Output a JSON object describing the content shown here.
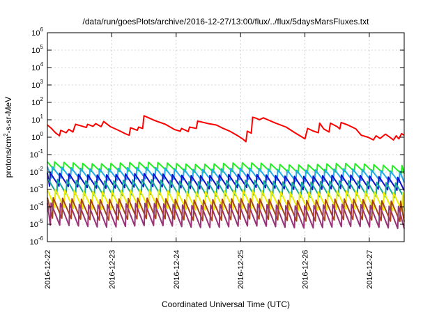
{
  "chart_data": {
    "type": "line",
    "title": "/data/run/goesPlots/archive/2016-12-27/13:00/flux/../flux/5daysMarsFluxes.txt",
    "xlabel": "Coordinated Universal Time (UTC)",
    "ylabel_base": "protons/cm",
    "ylabel_sup": "2",
    "ylabel_tail": "-s-sr-MeV",
    "y_scale": "log",
    "ylim": [
      1e-06,
      1000000.0
    ],
    "xlim": [
      "2016-12-22T00:00",
      "2016-12-27T13:00"
    ],
    "grid": true,
    "legend": "none",
    "x_ticks": [
      "2016-12-22",
      "2016-12-23",
      "2016-12-24",
      "2016-12-25",
      "2016-12-26",
      "2016-12-27"
    ],
    "y_ticks": [
      {
        "base": "10",
        "exp": "-6"
      },
      {
        "base": "10",
        "exp": "-5"
      },
      {
        "base": "10",
        "exp": "-4"
      },
      {
        "base": "10",
        "exp": "-3"
      },
      {
        "base": "10",
        "exp": "-2"
      },
      {
        "base": "10",
        "exp": "-1"
      },
      {
        "base": "10",
        "exp": "0"
      },
      {
        "base": "10",
        "exp": "1"
      },
      {
        "base": "10",
        "exp": "2"
      },
      {
        "base": "10",
        "exp": "3"
      },
      {
        "base": "10",
        "exp": "4"
      },
      {
        "base": "10",
        "exp": "5"
      },
      {
        "base": "10",
        "exp": "6"
      }
    ],
    "series": [
      {
        "color": "#ff0000",
        "kind": "points",
        "points": [
          [
            "2016-12-22T00:00",
            5
          ],
          [
            "2016-12-22T01:30",
            3.2
          ],
          [
            "2016-12-22T03:00",
            1.8
          ],
          [
            "2016-12-22T04:30",
            1.2
          ],
          [
            "2016-12-22T05:00",
            2.5
          ],
          [
            "2016-12-22T07:00",
            1.8
          ],
          [
            "2016-12-22T08:00",
            2.8
          ],
          [
            "2016-12-22T09:30",
            2.0
          ],
          [
            "2016-12-22T10:30",
            5.5
          ],
          [
            "2016-12-22T13:00",
            4.3
          ],
          [
            "2016-12-22T14:30",
            3.6
          ],
          [
            "2016-12-22T15:00",
            5.5
          ],
          [
            "2016-12-22T17:00",
            4.2
          ],
          [
            "2016-12-22T18:00",
            6.0
          ],
          [
            "2016-12-22T20:00",
            4.0
          ],
          [
            "2016-12-22T21:00",
            8.0
          ],
          [
            "2016-12-22T23:30",
            4.0
          ],
          [
            "2016-12-23T03:00",
            2.3
          ],
          [
            "2016-12-23T05:00",
            1.6
          ],
          [
            "2016-12-23T06:30",
            1.3
          ],
          [
            "2016-12-23T07:00",
            3.5
          ],
          [
            "2016-12-23T09:30",
            2.5
          ],
          [
            "2016-12-23T10:00",
            3.8
          ],
          [
            "2016-12-23T11:30",
            3.2
          ],
          [
            "2016-12-23T12:00",
            17
          ],
          [
            "2016-12-23T16:00",
            9
          ],
          [
            "2016-12-23T20:00",
            5.5
          ],
          [
            "2016-12-23T23:30",
            2.7
          ],
          [
            "2016-12-24T01:30",
            2.2
          ],
          [
            "2016-12-24T02:00",
            3.2
          ],
          [
            "2016-12-24T04:30",
            2.1
          ],
          [
            "2016-12-24T05:00",
            3.8
          ],
          [
            "2016-12-24T07:30",
            3.2
          ],
          [
            "2016-12-24T08:00",
            8.5
          ],
          [
            "2016-12-24T12:00",
            6.0
          ],
          [
            "2016-12-24T15:00",
            5.0
          ],
          [
            "2016-12-24T17:00",
            3.5
          ],
          [
            "2016-12-24T20:00",
            2.2
          ],
          [
            "2016-12-24T23:00",
            1.2
          ],
          [
            "2016-12-25T01:00",
            0.75
          ],
          [
            "2016-12-25T02:00",
            0.55
          ],
          [
            "2016-12-25T02:30",
            2.2
          ],
          [
            "2016-12-25T04:00",
            1.7
          ],
          [
            "2016-12-25T04:30",
            14
          ],
          [
            "2016-12-25T06:00",
            12
          ],
          [
            "2016-12-25T07:00",
            10
          ],
          [
            "2016-12-25T08:30",
            13
          ],
          [
            "2016-12-25T13:00",
            6.5
          ],
          [
            "2016-12-25T17:00",
            3.8
          ],
          [
            "2016-12-25T20:00",
            1.9
          ],
          [
            "2016-12-25T23:00",
            1.0
          ],
          [
            "2016-12-26T00:00",
            0.8
          ],
          [
            "2016-12-26T01:00",
            3.2
          ],
          [
            "2016-12-26T03:00",
            2.3
          ],
          [
            "2016-12-26T05:00",
            1.8
          ],
          [
            "2016-12-26T05:30",
            6.5
          ],
          [
            "2016-12-26T07:00",
            3.0
          ],
          [
            "2016-12-26T09:00",
            2.0
          ],
          [
            "2016-12-26T09:30",
            6.5
          ],
          [
            "2016-12-26T12:00",
            4.0
          ],
          [
            "2016-12-26T13:00",
            3.0
          ],
          [
            "2016-12-26T13:30",
            7.0
          ],
          [
            "2016-12-26T16:00",
            5.0
          ],
          [
            "2016-12-26T19:00",
            3.0
          ],
          [
            "2016-12-26T21:00",
            1.3
          ],
          [
            "2016-12-26T23:30",
            1.0
          ],
          [
            "2016-12-27T01:30",
            0.7
          ],
          [
            "2016-12-27T02:30",
            1.2
          ],
          [
            "2016-12-27T04:00",
            0.85
          ],
          [
            "2016-12-27T06:00",
            1.5
          ],
          [
            "2016-12-27T08:00",
            0.9
          ],
          [
            "2016-12-27T09:00",
            0.7
          ],
          [
            "2016-12-27T10:00",
            1.2
          ],
          [
            "2016-12-27T11:00",
            0.8
          ],
          [
            "2016-12-27T12:00",
            1.6
          ],
          [
            "2016-12-27T13:00",
            1.3
          ]
        ]
      },
      {
        "color": "#22ee22",
        "kind": "sawtooth",
        "period_hours": 3.5,
        "low": 0.012,
        "high": 0.035,
        "trend": [
          1.0,
          0.75
        ]
      },
      {
        "color": "#22aaee",
        "kind": "sawtooth",
        "period_hours": 3.5,
        "low": 0.004,
        "high": 0.018,
        "trend": [
          1.0,
          0.7
        ]
      },
      {
        "color": "#1111cc",
        "kind": "sawtooth",
        "period_hours": 3.5,
        "low": 0.0014,
        "high": 0.008,
        "trend": [
          1.0,
          0.7
        ]
      },
      {
        "color": "#11aa99",
        "kind": "sawtooth",
        "period_hours": 3.5,
        "low": 0.0005,
        "high": 0.0035,
        "trend": [
          1.0,
          0.75
        ]
      },
      {
        "color": "#eeee00",
        "kind": "sawtooth",
        "period_hours": 3.5,
        "low": 8e-05,
        "high": 0.0009,
        "trend": [
          1.0,
          0.8
        ]
      },
      {
        "color": "#aa4411",
        "kind": "sawtooth",
        "period_hours": 3.5,
        "low": 2e-05,
        "high": 0.0003,
        "trend": [
          1.0,
          0.8
        ]
      },
      {
        "color": "#993377",
        "kind": "sawtooth",
        "period_hours": 3.5,
        "low": 8e-06,
        "high": 0.00015,
        "trend": [
          1.0,
          0.8
        ]
      }
    ]
  }
}
